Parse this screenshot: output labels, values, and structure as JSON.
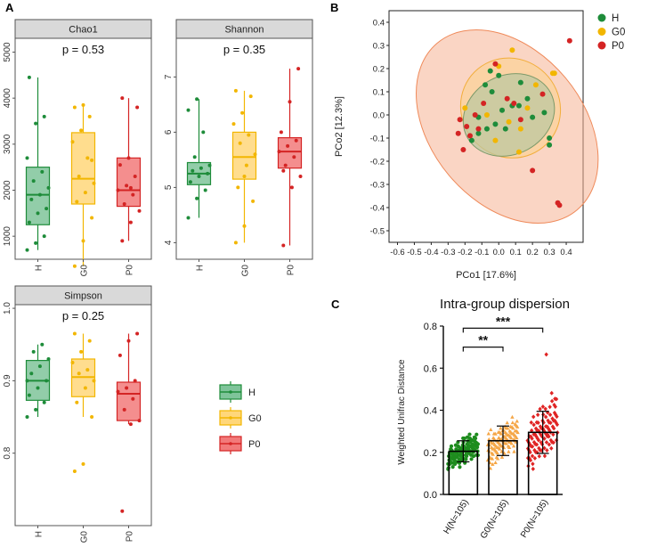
{
  "panels": {
    "a": "A",
    "b": "B",
    "c": "C"
  },
  "colors": {
    "H": "#1e8c3a",
    "G0": "#f2b600",
    "P0": "#d42424",
    "strip_bg": "#d9d9d9",
    "H_fill": "#7fc49a",
    "G0_fill": "#ffd77a",
    "P0_fill": "#f27a7a"
  },
  "alpha_groups": [
    "H",
    "G0",
    "P0"
  ],
  "legend_a": {
    "items": [
      "H",
      "G0",
      "P0"
    ]
  },
  "chart_data": [
    {
      "type": "box",
      "title": "Chao1",
      "pvalue": "p = 0.53",
      "categories": [
        "H",
        "G0",
        "P0"
      ],
      "yticks": [
        1000,
        2000,
        3000,
        4000,
        5000
      ],
      "ylim": [
        500,
        5300
      ],
      "boxes": [
        {
          "q1": 1250,
          "median": 1900,
          "q3": 2500,
          "lo": 700,
          "hi": 4450
        },
        {
          "q1": 1700,
          "median": 2250,
          "q3": 3250,
          "lo": 350,
          "hi": 3850
        },
        {
          "q1": 1650,
          "median": 2000,
          "q3": 2700,
          "lo": 900,
          "hi": 4000
        }
      ],
      "points": [
        [
          700,
          850,
          1000,
          1300,
          1500,
          1600,
          1800,
          1900,
          2050,
          2200,
          2400,
          2700,
          3450,
          3600,
          4450
        ],
        [
          350,
          900,
          1400,
          1750,
          1950,
          2150,
          2300,
          2700,
          3050,
          3300,
          3600,
          3800,
          3850,
          2650
        ],
        [
          900,
          1300,
          1550,
          1700,
          1900,
          2000,
          2100,
          2300,
          2550,
          2700,
          3800,
          4000,
          2050
        ]
      ]
    },
    {
      "type": "box",
      "title": "Shannon",
      "pvalue": "p = 0.35",
      "categories": [
        "H",
        "G0",
        "P0"
      ],
      "yticks": [
        4,
        5,
        6,
        7
      ],
      "ylim": [
        3.7,
        7.7
      ],
      "boxes": [
        {
          "q1": 5.05,
          "median": 5.25,
          "q3": 5.45,
          "lo": 4.45,
          "hi": 6.6
        },
        {
          "q1": 5.15,
          "median": 5.55,
          "q3": 6.0,
          "lo": 4.0,
          "hi": 6.75
        },
        {
          "q1": 5.35,
          "median": 5.65,
          "q3": 5.9,
          "lo": 3.95,
          "hi": 7.15
        }
      ],
      "points": [
        [
          4.45,
          4.8,
          4.95,
          5.1,
          5.2,
          5.25,
          5.3,
          5.35,
          5.4,
          5.55,
          6.0,
          6.4,
          6.6
        ],
        [
          4.0,
          4.3,
          4.75,
          5.0,
          5.4,
          5.6,
          5.8,
          5.95,
          6.15,
          6.35,
          6.65,
          6.75,
          5.2
        ],
        [
          3.95,
          5.0,
          5.2,
          5.4,
          5.55,
          5.65,
          5.75,
          5.85,
          6.0,
          6.55,
          7.15,
          5.3
        ]
      ]
    },
    {
      "type": "box",
      "title": "Simpson",
      "pvalue": "p = 0.25",
      "categories": [
        "H",
        "G0",
        "P0"
      ],
      "yticks": [
        0.8,
        0.9,
        1.0
      ],
      "ylim": [
        0.7,
        1.005
      ],
      "boxes": [
        {
          "q1": 0.873,
          "median": 0.9,
          "q3": 0.928,
          "lo": 0.85,
          "hi": 0.95
        },
        {
          "q1": 0.878,
          "median": 0.905,
          "q3": 0.93,
          "lo": 0.85,
          "hi": 0.965
        },
        {
          "q1": 0.845,
          "median": 0.882,
          "q3": 0.898,
          "lo": 0.84,
          "hi": 0.965
        }
      ],
      "points": [
        [
          0.85,
          0.86,
          0.87,
          0.88,
          0.89,
          0.9,
          0.91,
          0.92,
          0.93,
          0.94,
          0.95,
          0.9
        ],
        [
          0.775,
          0.785,
          0.85,
          0.87,
          0.89,
          0.9,
          0.91,
          0.915,
          0.925,
          0.94,
          0.955,
          0.965
        ],
        [
          0.72,
          0.84,
          0.845,
          0.86,
          0.875,
          0.885,
          0.89,
          0.9,
          0.935,
          0.955,
          0.965
        ]
      ]
    },
    {
      "type": "scatter",
      "xlabel": "PCo1 [17.6%]",
      "ylabel": "PCo2 [12.3%]",
      "xlim": [
        -0.65,
        0.5
      ],
      "ylim": [
        -0.55,
        0.45
      ],
      "xticks": [
        -0.6,
        -0.5,
        -0.4,
        -0.3,
        -0.2,
        -0.1,
        0.0,
        0.1,
        0.2,
        0.3,
        0.4
      ],
      "yticks": [
        -0.5,
        -0.4,
        -0.3,
        -0.2,
        -0.1,
        0.0,
        0.1,
        0.2,
        0.3,
        0.4
      ],
      "legend": [
        "H",
        "G0",
        "P0"
      ],
      "series": [
        {
          "name": "H",
          "points": [
            [
              -0.05,
              0.19
            ],
            [
              -0.08,
              0.13
            ],
            [
              0.0,
              0.17
            ],
            [
              0.13,
              0.14
            ],
            [
              -0.04,
              0.1
            ],
            [
              0.08,
              0.04
            ],
            [
              0.12,
              0.04
            ],
            [
              0.17,
              0.07
            ],
            [
              0.27,
              0.01
            ],
            [
              0.3,
              -0.1
            ],
            [
              0.3,
              -0.13
            ],
            [
              -0.02,
              -0.04
            ],
            [
              -0.07,
              -0.06
            ],
            [
              -0.12,
              -0.08
            ],
            [
              -0.16,
              -0.11
            ],
            [
              -0.12,
              -0.01
            ],
            [
              0.02,
              0.02
            ],
            [
              0.2,
              -0.01
            ],
            [
              0.04,
              -0.06
            ]
          ]
        },
        {
          "name": "G0",
          "points": [
            [
              0.08,
              0.28
            ],
            [
              0.32,
              0.18
            ],
            [
              0.22,
              0.13
            ],
            [
              0.0,
              0.21
            ],
            [
              -0.2,
              0.03
            ],
            [
              0.13,
              -0.06
            ],
            [
              -0.02,
              -0.11
            ],
            [
              0.06,
              -0.03
            ],
            [
              0.12,
              -0.16
            ],
            [
              0.33,
              0.18
            ],
            [
              -0.07,
              0.0
            ],
            [
              0.17,
              0.03
            ]
          ]
        },
        {
          "name": "P0",
          "points": [
            [
              0.42,
              0.32
            ],
            [
              0.35,
              -0.38
            ],
            [
              0.36,
              -0.39
            ],
            [
              0.2,
              -0.24
            ],
            [
              0.26,
              0.09
            ],
            [
              -0.02,
              0.22
            ],
            [
              -0.09,
              0.05
            ],
            [
              -0.14,
              0.0
            ],
            [
              -0.19,
              -0.05
            ],
            [
              -0.17,
              -0.09
            ],
            [
              -0.23,
              -0.02
            ],
            [
              -0.24,
              -0.08
            ],
            [
              -0.21,
              -0.15
            ],
            [
              -0.12,
              -0.06
            ],
            [
              0.05,
              0.07
            ],
            [
              0.09,
              0.05
            ],
            [
              0.13,
              -0.02
            ]
          ]
        }
      ],
      "ellipses": [
        {
          "name": "P0",
          "cx": 0.05,
          "cy": -0.05,
          "rx": 0.45,
          "ry": 0.47,
          "angle": -40
        },
        {
          "name": "G0",
          "cx": 0.07,
          "cy": 0.03,
          "rx": 0.29,
          "ry": 0.22,
          "angle": -45
        },
        {
          "name": "H",
          "cx": 0.06,
          "cy": 0.0,
          "rx": 0.28,
          "ry": 0.17,
          "angle": -28
        }
      ]
    },
    {
      "type": "bar",
      "title": "Intra-group dispersion",
      "ylabel": "Weighted Unifrac Distance",
      "categories": [
        "H(N=105)",
        "G0(N=105)",
        "P0(N=105)"
      ],
      "values": [
        0.205,
        0.255,
        0.295
      ],
      "sd": [
        0.05,
        0.07,
        0.1
      ],
      "ylim": [
        0,
        0.8
      ],
      "yticks": [
        0.0,
        0.2,
        0.4,
        0.6,
        0.8
      ],
      "significance": [
        {
          "from": "H(N=105)",
          "to": "G0(N=105)",
          "label": "**"
        },
        {
          "from": "H(N=105)",
          "to": "P0(N=105)",
          "label": "***"
        }
      ]
    }
  ]
}
